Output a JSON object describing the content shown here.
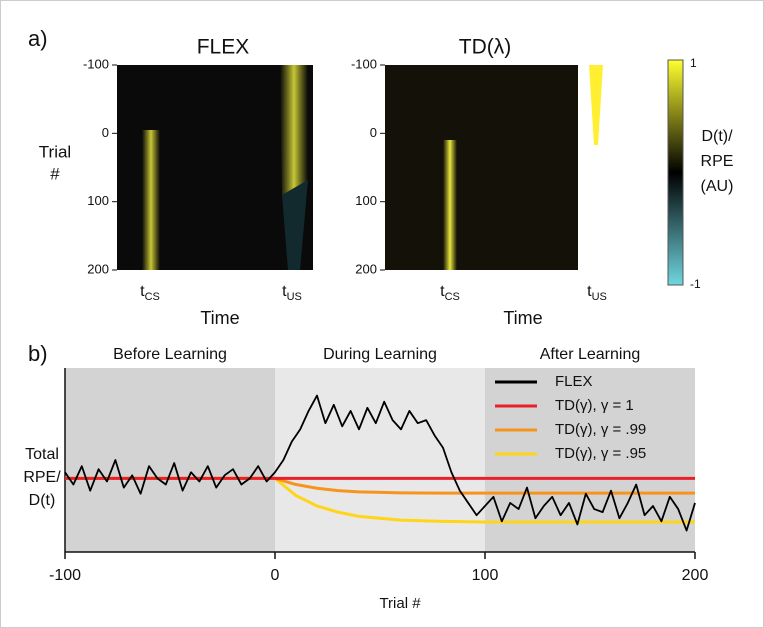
{
  "chart_data": [
    {
      "type": "heatmap",
      "panel_label": "a)",
      "title": "FLEX",
      "y_label": [
        "Trial",
        "#"
      ],
      "x_label": "Time",
      "ylim": [
        -100,
        200
      ],
      "yticks": [
        -100,
        0,
        100,
        200
      ],
      "xtick_labels": [
        {
          "main": "t",
          "sub": "CS"
        },
        {
          "main": "t",
          "sub": "US"
        }
      ]
    },
    {
      "type": "heatmap",
      "title": "TD(λ)",
      "x_label": "Time",
      "ylim": [
        -100,
        200
      ],
      "yticks": [
        -100,
        0,
        100,
        200
      ],
      "xtick_labels": [
        {
          "main": "t",
          "sub": "CS"
        },
        {
          "main": "t",
          "sub": "US"
        }
      ],
      "colorbar": {
        "ticks": [
          1,
          -1
        ],
        "label": [
          "D(t)/",
          "RPE",
          "(AU)"
        ]
      }
    },
    {
      "type": "line",
      "panel_label": "b)",
      "y_label": [
        "Total",
        "RPE/",
        "D(t)"
      ],
      "x_label": "Trial #",
      "regions": [
        {
          "name": "Before Learning",
          "range": [
            -100,
            0
          ],
          "color": "#d3d3d3"
        },
        {
          "name": "During Learning",
          "range": [
            0,
            100
          ],
          "color": "#e8e8e8"
        },
        {
          "name": "After Learning",
          "range": [
            100,
            200
          ],
          "color": "#d3d3d3"
        }
      ],
      "xlim": [
        -100,
        200
      ],
      "xticks": [
        -100,
        0,
        100,
        200
      ],
      "ylim": [
        -0.2,
        2.8
      ],
      "legend": "upper right",
      "series": [
        {
          "name": "FLEX",
          "color": "#000000",
          "x": [
            -100,
            -96,
            -92,
            -88,
            -84,
            -80,
            -76,
            -72,
            -68,
            -64,
            -60,
            -56,
            -52,
            -48,
            -44,
            -40,
            -36,
            -32,
            -28,
            -24,
            -20,
            -16,
            -12,
            -8,
            -4,
            0,
            4,
            8,
            12,
            16,
            20,
            24,
            28,
            32,
            36,
            40,
            44,
            48,
            52,
            56,
            60,
            64,
            68,
            72,
            76,
            80,
            84,
            88,
            92,
            96,
            100,
            104,
            108,
            112,
            116,
            120,
            124,
            128,
            132,
            136,
            140,
            144,
            148,
            152,
            156,
            160,
            164,
            168,
            172,
            176,
            180,
            184,
            188,
            192,
            196,
            200
          ],
          "values": [
            1.1,
            0.9,
            1.2,
            0.8,
            1.15,
            0.95,
            1.3,
            0.85,
            1.05,
            0.75,
            1.2,
            1.0,
            0.9,
            1.25,
            0.8,
            1.1,
            0.95,
            1.2,
            0.85,
            1.05,
            1.15,
            0.9,
            1.0,
            1.2,
            0.95,
            1.1,
            1.3,
            1.6,
            1.8,
            2.1,
            2.35,
            1.9,
            2.2,
            1.85,
            2.1,
            1.8,
            2.15,
            1.9,
            2.25,
            1.95,
            1.8,
            2.1,
            1.9,
            1.95,
            1.7,
            1.5,
            1.1,
            0.8,
            0.6,
            0.4,
            0.55,
            0.7,
            0.3,
            0.6,
            0.5,
            0.85,
            0.35,
            0.55,
            0.7,
            0.4,
            0.6,
            0.25,
            0.75,
            0.5,
            0.45,
            0.8,
            0.35,
            0.6,
            0.9,
            0.4,
            0.55,
            0.3,
            0.7,
            0.5,
            0.15,
            0.6
          ]
        },
        {
          "name": "TD(γ), γ = 1",
          "color": "#e8202a",
          "x": [
            -100,
            200
          ],
          "values": [
            1,
            1
          ]
        },
        {
          "name": "TD(γ), γ = .99",
          "color": "#f7941d",
          "x": [
            -100,
            0,
            10,
            20,
            30,
            40,
            60,
            80,
            100,
            150,
            200
          ],
          "values": [
            1,
            1,
            0.9,
            0.84,
            0.8,
            0.78,
            0.765,
            0.76,
            0.76,
            0.76,
            0.76
          ]
        },
        {
          "name": "TD(γ), γ = .95",
          "color": "#ffd51a",
          "x": [
            -100,
            0,
            10,
            20,
            30,
            40,
            60,
            80,
            100,
            150,
            200
          ],
          "values": [
            1,
            1,
            0.72,
            0.55,
            0.45,
            0.38,
            0.32,
            0.3,
            0.29,
            0.29,
            0.29
          ]
        }
      ]
    }
  ]
}
